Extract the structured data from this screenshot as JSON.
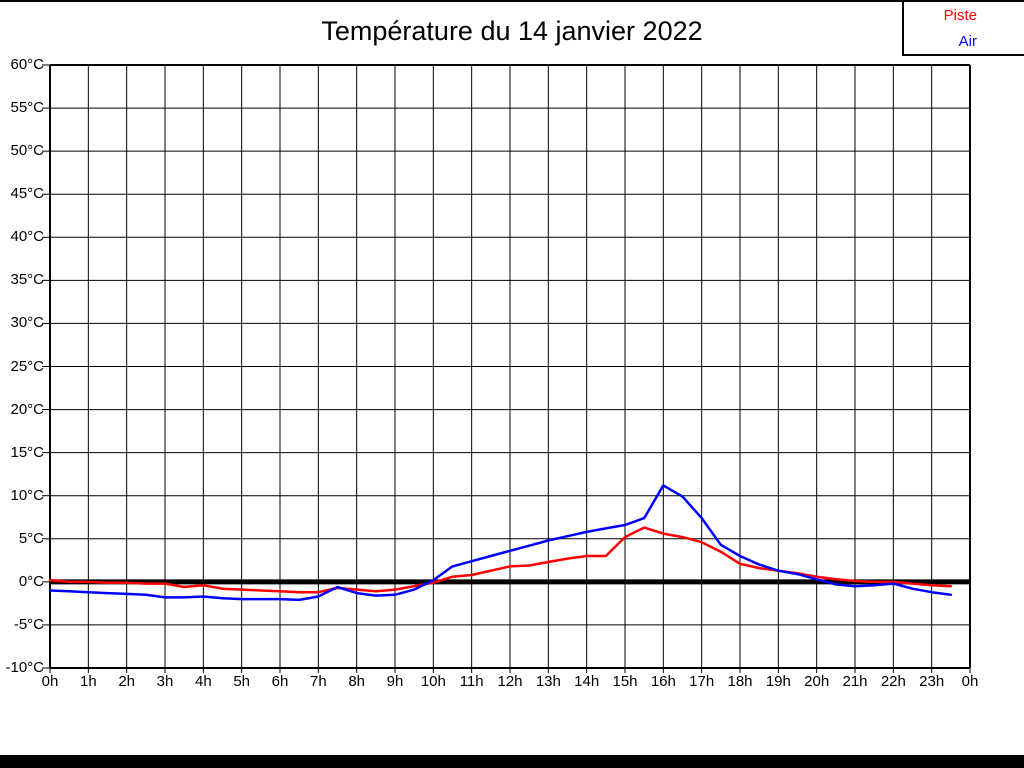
{
  "page": {
    "title": "Température du 14 janvier 2022"
  },
  "legend": {
    "position": "top-right",
    "items": [
      {
        "label": "Piste",
        "color": "#ff0000"
      },
      {
        "label": "Air",
        "color": "#0000ff"
      }
    ]
  },
  "chart_data": {
    "type": "line",
    "title": "Température du 14 janvier 2022",
    "xlabel": "",
    "ylabel": "",
    "grid": true,
    "zero_line": true,
    "xlim": [
      0,
      24
    ],
    "ylim": [
      -10,
      60
    ],
    "y_tick_step_c": 5,
    "x_tick_step_h": 1,
    "x_tick_labels": [
      "0h",
      "1h",
      "2h",
      "3h",
      "4h",
      "5h",
      "6h",
      "7h",
      "8h",
      "9h",
      "10h",
      "11h",
      "12h",
      "13h",
      "14h",
      "15h",
      "16h",
      "17h",
      "18h",
      "19h",
      "20h",
      "21h",
      "22h",
      "23h",
      "0h"
    ],
    "y_tick_labels": [
      "60°C",
      "55°C",
      "50°C",
      "45°C",
      "40°C",
      "35°C",
      "30°C",
      "25°C",
      "20°C",
      "15°C",
      "10°C",
      "5°C",
      "0°C",
      "-5°C",
      "-10°C"
    ],
    "x_hours": [
      0,
      0.5,
      1,
      1.5,
      2,
      2.5,
      3,
      3.5,
      4,
      4.5,
      5,
      5.5,
      6,
      6.5,
      7,
      7.5,
      8,
      8.5,
      9,
      9.5,
      10,
      10.5,
      11,
      11.5,
      12,
      12.5,
      13,
      13.5,
      14,
      14.5,
      15,
      15.5,
      16,
      16.5,
      17,
      17.5,
      18,
      18.5,
      19,
      19.5,
      20,
      20.5,
      21,
      21.5,
      22,
      22.5,
      23,
      23.5
    ],
    "series": [
      {
        "name": "Piste",
        "color": "#ff0000",
        "values": [
          0.2,
          0.0,
          0.0,
          -0.1,
          -0.1,
          -0.2,
          -0.2,
          -0.6,
          -0.4,
          -0.8,
          -0.9,
          -1.0,
          -1.1,
          -1.2,
          -1.2,
          -0.7,
          -0.9,
          -1.1,
          -0.9,
          -0.5,
          -0.1,
          0.6,
          0.8,
          1.3,
          1.8,
          1.9,
          2.3,
          2.7,
          3.0,
          3.0,
          5.2,
          6.3,
          5.6,
          5.2,
          4.6,
          3.5,
          2.1,
          1.6,
          1.3,
          1.0,
          0.6,
          0.3,
          0.1,
          0.0,
          0.0,
          -0.2,
          -0.4,
          -0.5
        ]
      },
      {
        "name": "Air",
        "color": "#0000ff",
        "values": [
          -1.0,
          -1.1,
          -1.2,
          -1.3,
          -1.4,
          -1.5,
          -1.8,
          -1.8,
          -1.7,
          -1.9,
          -2.0,
          -2.0,
          -2.0,
          -2.1,
          -1.7,
          -0.6,
          -1.3,
          -1.6,
          -1.5,
          -0.9,
          0.2,
          1.8,
          2.4,
          3.0,
          3.6,
          4.2,
          4.8,
          5.3,
          5.8,
          6.2,
          6.6,
          7.4,
          11.2,
          9.9,
          7.4,
          4.3,
          3.0,
          2.0,
          1.3,
          0.9,
          0.3,
          -0.3,
          -0.5,
          -0.4,
          -0.2,
          -0.8,
          -1.2,
          -1.5
        ]
      }
    ]
  }
}
